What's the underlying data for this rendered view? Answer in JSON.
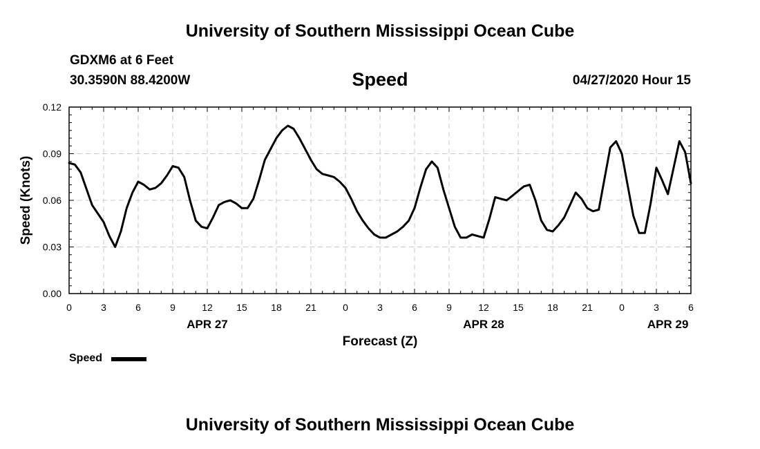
{
  "header": {
    "title": "University of Southern Mississippi Ocean Cube",
    "station": "GDXM6 at 6 Feet",
    "coords": "30.3590N 88.4200W",
    "variable": "Speed",
    "timestamp": "04/27/2020 Hour 15"
  },
  "footer": {
    "title": "University of Southern Mississippi Ocean Cube"
  },
  "legend": {
    "label": "Speed"
  },
  "chart_data": {
    "type": "line",
    "title": "Speed",
    "xlabel": "Forecast (Z)",
    "ylabel": "Speed (Knots)",
    "x_units": "hours since 2020-04-27 00Z",
    "xlim": [
      0,
      54
    ],
    "ylim": [
      0,
      0.12
    ],
    "y_ticks": [
      "0.00",
      "0.03",
      "0.06",
      "0.09",
      "0.12"
    ],
    "y_tick_values": [
      0,
      0.03,
      0.06,
      0.09,
      0.12
    ],
    "x_ticks": [
      {
        "x": 0,
        "label": "0"
      },
      {
        "x": 3,
        "label": "3"
      },
      {
        "x": 6,
        "label": "6"
      },
      {
        "x": 9,
        "label": "9"
      },
      {
        "x": 12,
        "label": "12"
      },
      {
        "x": 15,
        "label": "15"
      },
      {
        "x": 18,
        "label": "18"
      },
      {
        "x": 21,
        "label": "21"
      },
      {
        "x": 24,
        "label": "0"
      },
      {
        "x": 27,
        "label": "3"
      },
      {
        "x": 30,
        "label": "6"
      },
      {
        "x": 33,
        "label": "9"
      },
      {
        "x": 36,
        "label": "12"
      },
      {
        "x": 39,
        "label": "15"
      },
      {
        "x": 42,
        "label": "18"
      },
      {
        "x": 45,
        "label": "21"
      },
      {
        "x": 48,
        "label": "0"
      },
      {
        "x": 51,
        "label": "3"
      },
      {
        "x": 54,
        "label": "6"
      }
    ],
    "date_labels": [
      {
        "x": 12,
        "label": "APR 27"
      },
      {
        "x": 36,
        "label": "APR 28"
      },
      {
        "x": 52,
        "label": "APR 29"
      }
    ],
    "grid": true,
    "series": [
      {
        "name": "Speed",
        "color": "#000000",
        "x": [
          0,
          0.5,
          1,
          2,
          3,
          3.5,
          4,
          4.5,
          5,
          5.5,
          6,
          6.5,
          7,
          7.5,
          8,
          8.5,
          9,
          9.5,
          10,
          10.5,
          11,
          11.5,
          12,
          12.5,
          13,
          13.5,
          14,
          14.5,
          15,
          15.5,
          16,
          16.5,
          17,
          18,
          18.5,
          19,
          19.5,
          20,
          20.5,
          21,
          21.5,
          22,
          22.5,
          23,
          23.5,
          24,
          24.5,
          25,
          25.5,
          26,
          26.5,
          27,
          27.5,
          28,
          28.5,
          29,
          29.5,
          30,
          30.5,
          31,
          31.5,
          32,
          32.5,
          33,
          33.5,
          34,
          34.5,
          35,
          35.5,
          36,
          36.5,
          37,
          37.5,
          38,
          38.5,
          39,
          39.5,
          40,
          40.5,
          41,
          41.5,
          42,
          42.5,
          43,
          43.5,
          44,
          44.5,
          45,
          45.5,
          46,
          46.5,
          47,
          47.5,
          48,
          48.5,
          49,
          49.5,
          50,
          50.5,
          51,
          51.5,
          52,
          52.5,
          53,
          53.5,
          54
        ],
        "y": [
          0.084,
          0.083,
          0.078,
          0.057,
          0.046,
          0.037,
          0.03,
          0.04,
          0.055,
          0.065,
          0.072,
          0.07,
          0.067,
          0.068,
          0.071,
          0.076,
          0.082,
          0.081,
          0.075,
          0.06,
          0.047,
          0.043,
          0.042,
          0.049,
          0.057,
          0.059,
          0.06,
          0.058,
          0.055,
          0.055,
          0.061,
          0.073,
          0.086,
          0.1,
          0.105,
          0.108,
          0.106,
          0.1,
          0.093,
          0.086,
          0.08,
          0.077,
          0.076,
          0.075,
          0.072,
          0.068,
          0.061,
          0.053,
          0.047,
          0.042,
          0.038,
          0.036,
          0.036,
          0.038,
          0.04,
          0.043,
          0.047,
          0.055,
          0.068,
          0.08,
          0.085,
          0.081,
          0.067,
          0.055,
          0.043,
          0.036,
          0.036,
          0.038,
          0.037,
          0.036,
          0.048,
          0.062,
          0.061,
          0.06,
          0.063,
          0.066,
          0.069,
          0.07,
          0.06,
          0.047,
          0.041,
          0.04,
          0.044,
          0.049,
          0.057,
          0.065,
          0.061,
          0.055,
          0.053,
          0.054,
          0.074,
          0.094,
          0.098,
          0.09,
          0.07,
          0.05,
          0.039,
          0.039,
          0.058,
          0.081,
          0.073,
          0.064,
          0.081,
          0.098,
          0.091,
          0.071
        ]
      }
    ]
  }
}
